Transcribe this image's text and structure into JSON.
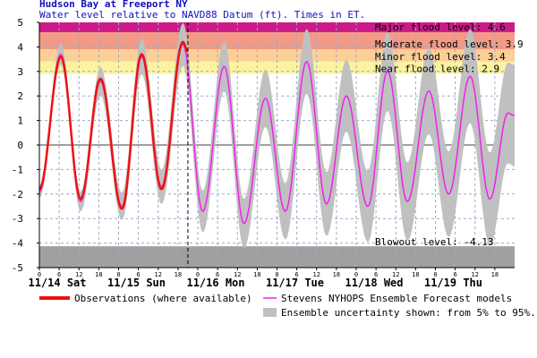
{
  "chart_data": {
    "type": "line",
    "title": "Hudson Bay at Freeport NY",
    "subtitle": "Water level relative to NAVD88 Datum (ft). Times in ET.",
    "ylim": [
      -5,
      5
    ],
    "yticks": [
      "5",
      "4",
      "3",
      "2",
      "1",
      "0",
      "-1",
      "-2",
      "-3",
      "-4",
      "-5"
    ],
    "x_range_hours": [
      0,
      144
    ],
    "hour_ticks": [
      "0",
      "6",
      "12",
      "18",
      "0",
      "6",
      "12",
      "18",
      "0",
      "6",
      "12",
      "18",
      "0",
      "6",
      "12",
      "18",
      "0",
      "6",
      "12",
      "18",
      "0",
      "6",
      "12",
      "18"
    ],
    "day_labels": [
      "11/14 Sat",
      "11/15 Sun",
      "11/16 Mon",
      "11/17 Tue",
      "11/18 Wed",
      "11/19 Thu"
    ],
    "now_hour": 45,
    "flood_levels": [
      {
        "label": "Major flood level: 4.6",
        "value": 4.6,
        "color": "#cc1a88"
      },
      {
        "label": "Moderate flood level: 3.9",
        "value": 3.9,
        "color": "#f29a86"
      },
      {
        "label": "Minor flood level: 3.4",
        "value": 3.4,
        "color": "#fbcf98"
      },
      {
        "label": "Near flood level: 2.9",
        "value": 2.9,
        "color": "#fbf3a0"
      }
    ],
    "blowout": {
      "label": "Blowout level: -4.13",
      "value": -4.13,
      "color": "#a0a0a0"
    },
    "series": [
      {
        "name": "Observations (where available)",
        "color": "#ee1111",
        "points": [
          [
            0,
            -1.8
          ],
          [
            6.5,
            3.6
          ],
          [
            12.5,
            -2.2
          ],
          [
            18.5,
            2.7
          ],
          [
            25,
            -2.6
          ],
          [
            31,
            3.7
          ],
          [
            37,
            -1.8
          ],
          [
            43.5,
            4.2
          ],
          [
            45,
            3.8
          ]
        ]
      },
      {
        "name": "Stevens NYHOPS Ensemble Forecast models",
        "color": "#ee22ee",
        "points": [
          [
            0,
            -1.9
          ],
          [
            6.5,
            3.7
          ],
          [
            12.5,
            -2.3
          ],
          [
            18.5,
            2.6
          ],
          [
            25,
            -2.5
          ],
          [
            31,
            3.6
          ],
          [
            37,
            -1.7
          ],
          [
            43.5,
            4.1
          ],
          [
            49.5,
            -2.7
          ],
          [
            56,
            3.2
          ],
          [
            62,
            -3.2
          ],
          [
            68.5,
            1.9
          ],
          [
            74.5,
            -2.7
          ],
          [
            81,
            3.4
          ],
          [
            87,
            -2.4
          ],
          [
            93,
            2.0
          ],
          [
            99.5,
            -2.5
          ],
          [
            105.5,
            3.0
          ],
          [
            111.5,
            -2.3
          ],
          [
            118,
            2.2
          ],
          [
            124,
            -2.0
          ],
          [
            130.5,
            2.8
          ],
          [
            136.5,
            -2.2
          ],
          [
            142,
            1.3
          ],
          [
            144,
            1.2
          ]
        ]
      }
    ],
    "uncertainty": {
      "name": "Ensemble uncertainty shown: from 5% to 95%.",
      "color": "#c0c0c0"
    }
  }
}
